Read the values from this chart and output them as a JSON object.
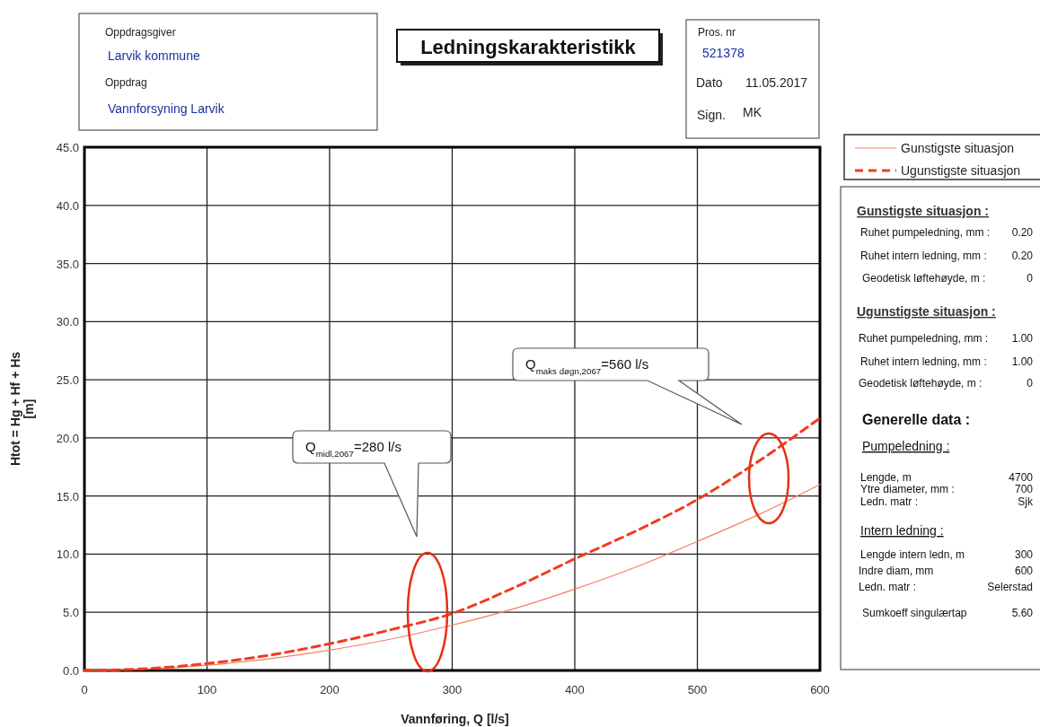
{
  "chart_data": {
    "type": "line",
    "title": "Ledningskarakteristikk",
    "xlabel": "Vannføring, Q [l/s]",
    "ylabel": "Htot = Hg + Hf + Hs\n[m]",
    "x": [
      0,
      50,
      100,
      150,
      200,
      250,
      300,
      350,
      400,
      450,
      500,
      550,
      600
    ],
    "series": [
      {
        "name": "Gunstigste situasjon",
        "color": "#f08060",
        "line_style": "solid",
        "values": [
          0,
          0.1,
          0.45,
          1.0,
          1.75,
          2.7,
          3.9,
          5.3,
          7.0,
          8.9,
          11.1,
          13.4,
          16.0
        ]
      },
      {
        "name": "Ugunstigste situasjon",
        "color": "#f03c1e",
        "line_style": "dashed",
        "values": [
          0,
          0.15,
          0.6,
          1.3,
          2.3,
          3.5,
          4.9,
          7.1,
          9.6,
          12.0,
          14.7,
          18.0,
          21.7
        ]
      }
    ],
    "xlim": [
      0,
      600
    ],
    "xticks": [
      0,
      100,
      200,
      300,
      400,
      500,
      600
    ],
    "ylim": [
      0,
      45
    ],
    "yticks": [
      {
        "value": 0,
        "label": "0.0"
      },
      {
        "value": 5,
        "label": "5.0"
      },
      {
        "value": 10,
        "label": "10.0"
      },
      {
        "value": 15,
        "label": "15.0"
      },
      {
        "value": 20,
        "label": "20.0"
      },
      {
        "value": 25,
        "label": "25.0"
      },
      {
        "value": 30,
        "label": "30.0"
      },
      {
        "value": 35,
        "label": "35.0"
      },
      {
        "value": 40,
        "label": "40.0"
      },
      {
        "value": 45,
        "label": "45.0"
      }
    ],
    "grid": true,
    "legend": "top right",
    "marker": "none",
    "annotations": [
      "Oppdragsgiver",
      "Larvik kommune",
      "Oppdrag",
      "Vannforsyning Larvik",
      "Pros. nr",
      "521378",
      "Dato",
      "11.05.2017",
      "Sign.",
      "MK",
      "Gunstigste situasjon :",
      "Ruhet pumpeledning, mm :",
      "0.20",
      "Ruhet intern ledning, mm :",
      "0.20",
      "Geodetisk løftehøyde, m :",
      "0",
      "Ugunstigste situasjon :",
      "Ruhet pumpeledning, mm :",
      "1.00",
      "Ruhet intern ledning, mm :",
      "1.00",
      "Geodetisk løftehøyde, m :",
      "0",
      "Generelle data :",
      "Pumpeledning :",
      "Lengde, m",
      "4700",
      "Ytre diameter, mm :",
      "700",
      "Ledn. matr :",
      "Sjk",
      "Intern ledning :",
      "Lengde intern ledn, m",
      "300",
      "Indre diam, mm",
      "600",
      "Ledn. matr :",
      "Selerstad",
      "Sumkoeff singulærtap",
      "5.60",
      "Q$_{midl,2067}$=280 l/s",
      "Q$_{maks døgn,2067}$=560 l/s"
    ]
  }
}
